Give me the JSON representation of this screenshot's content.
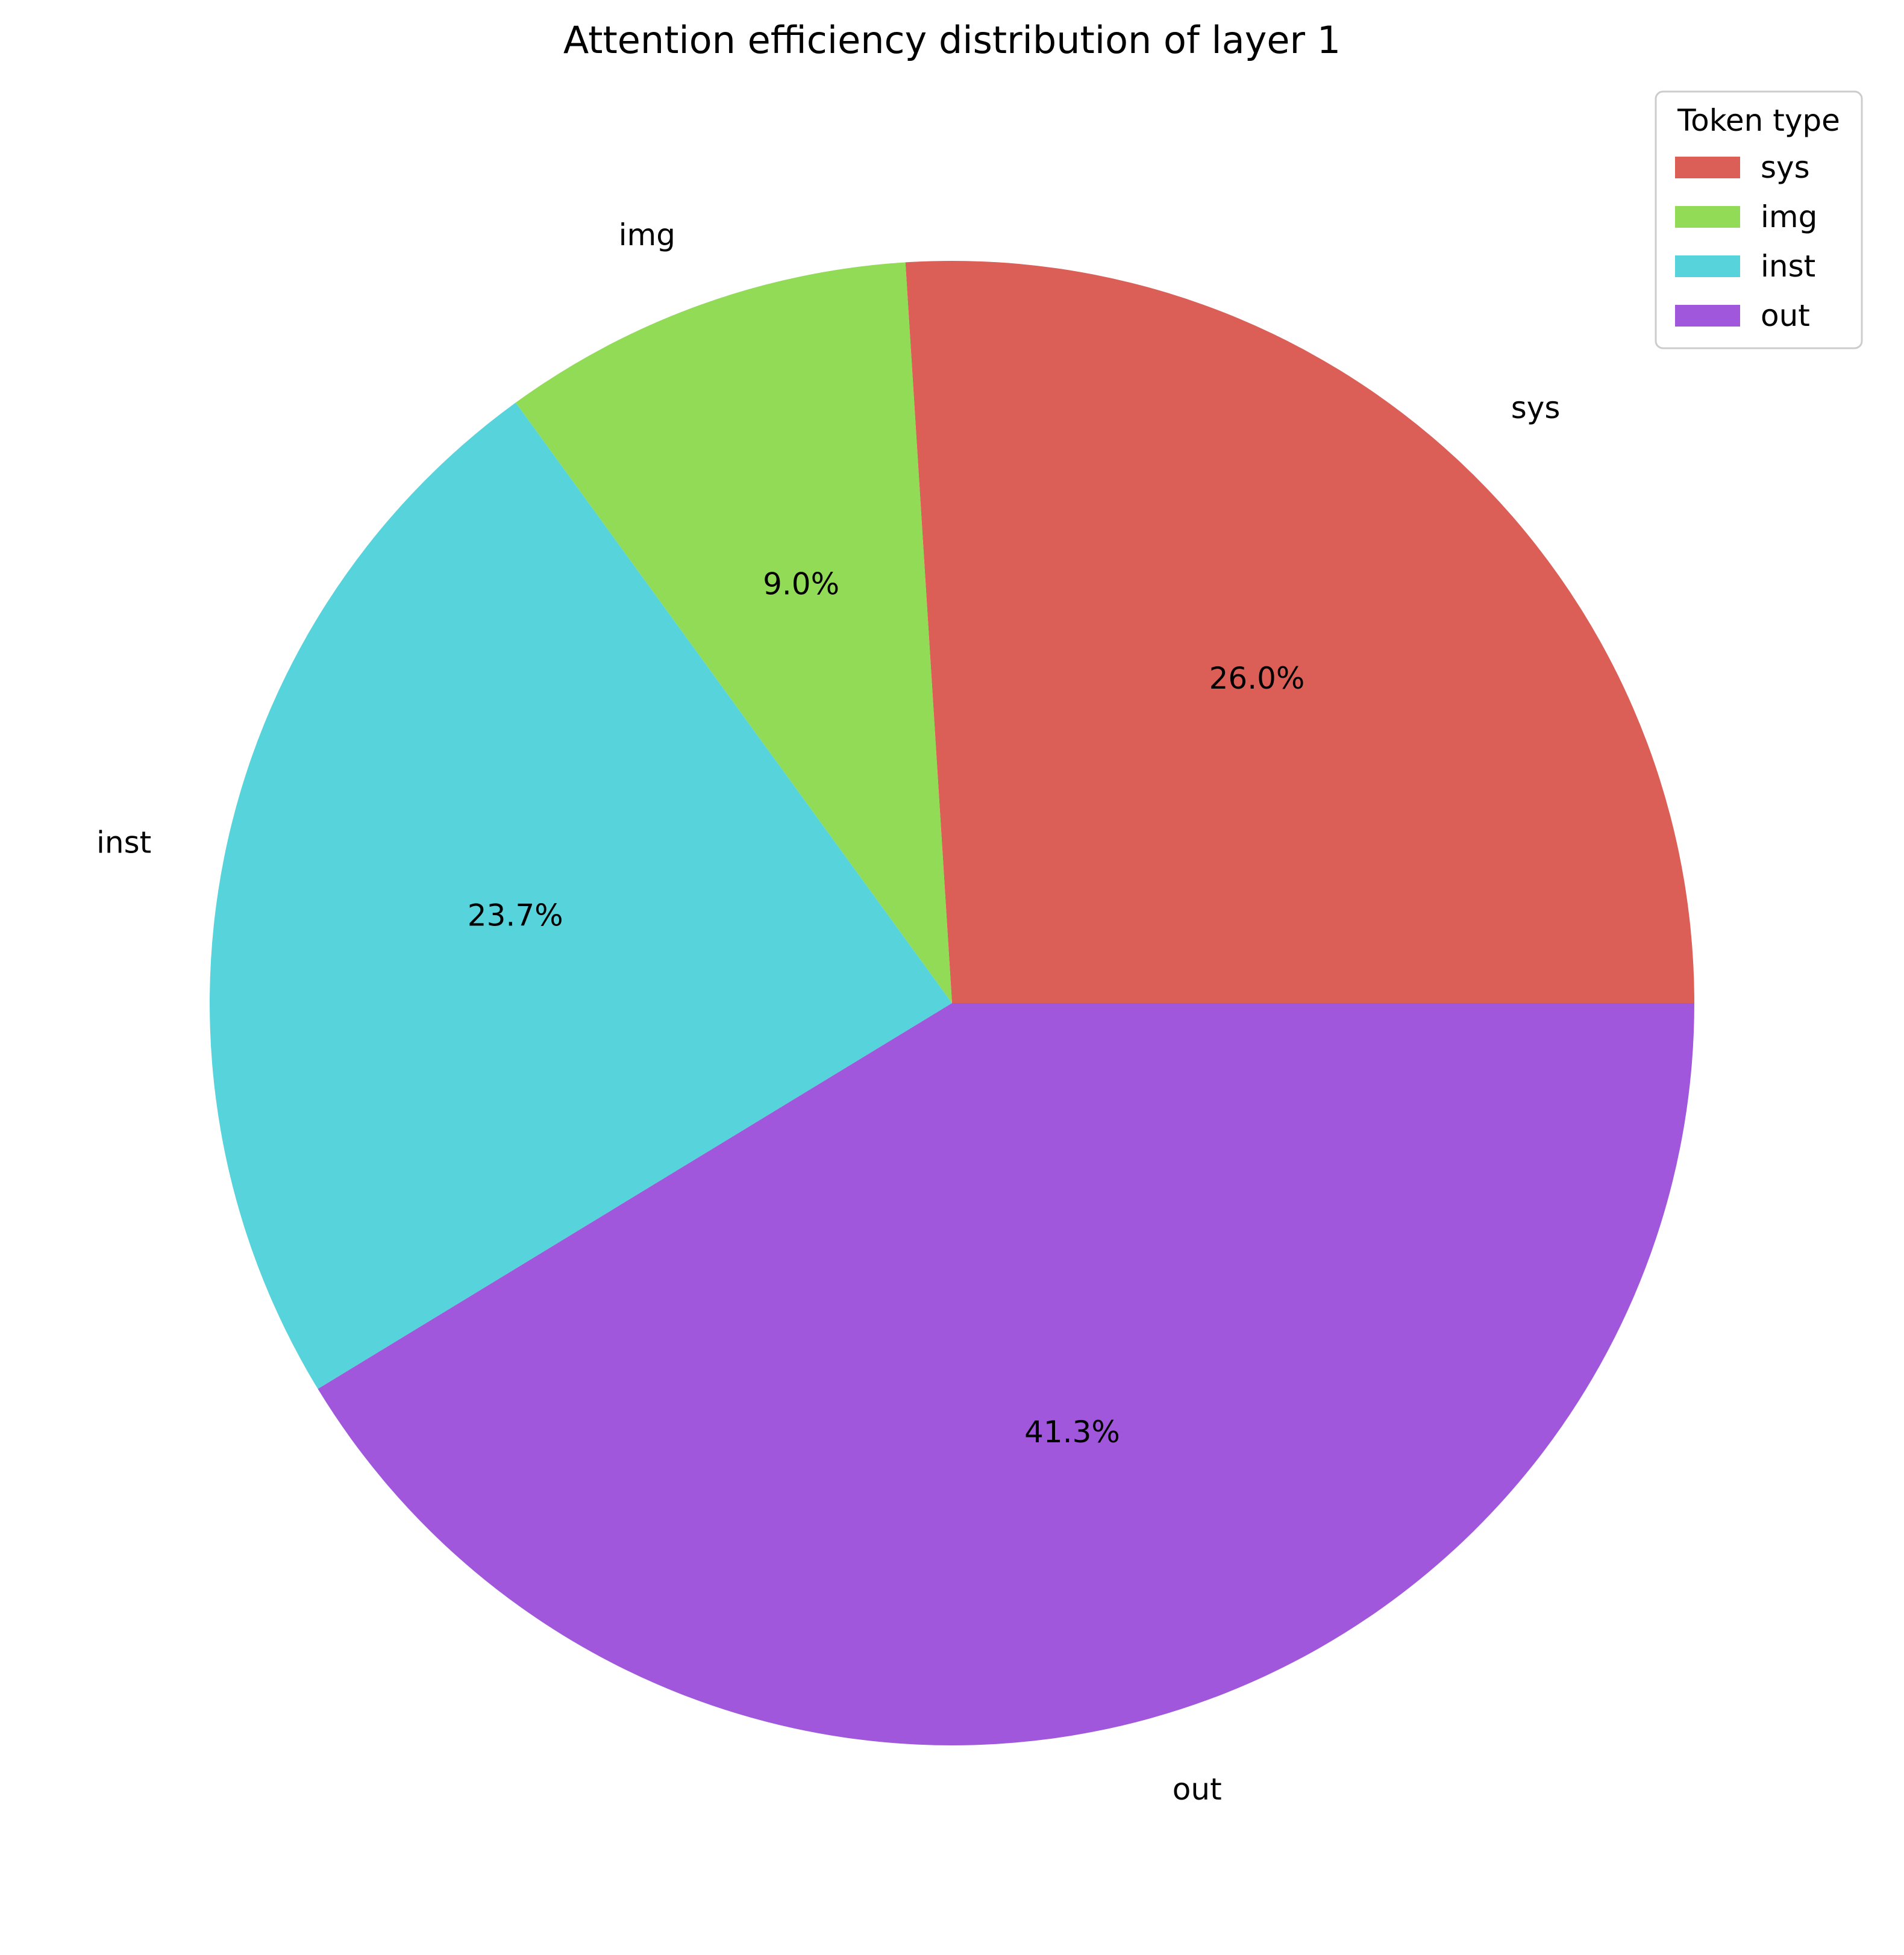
{
  "chart_data": {
    "type": "pie",
    "title": "Attention efficiency distribution of layer 1",
    "categories": [
      "sys",
      "img",
      "inst",
      "out"
    ],
    "values": [
      26.0,
      9.0,
      23.7,
      41.3
    ],
    "percent_labels": [
      "26.0%",
      "9.0%",
      "23.7%",
      "41.3%"
    ],
    "colors": [
      "#db5f57",
      "#91db57",
      "#57d3db",
      "#a157db"
    ],
    "start_angle_deg": 0,
    "direction": "counterclockwise",
    "legend": {
      "title": "Token type",
      "placement": "top-right",
      "entries": [
        "sys",
        "img",
        "inst",
        "out"
      ]
    }
  }
}
